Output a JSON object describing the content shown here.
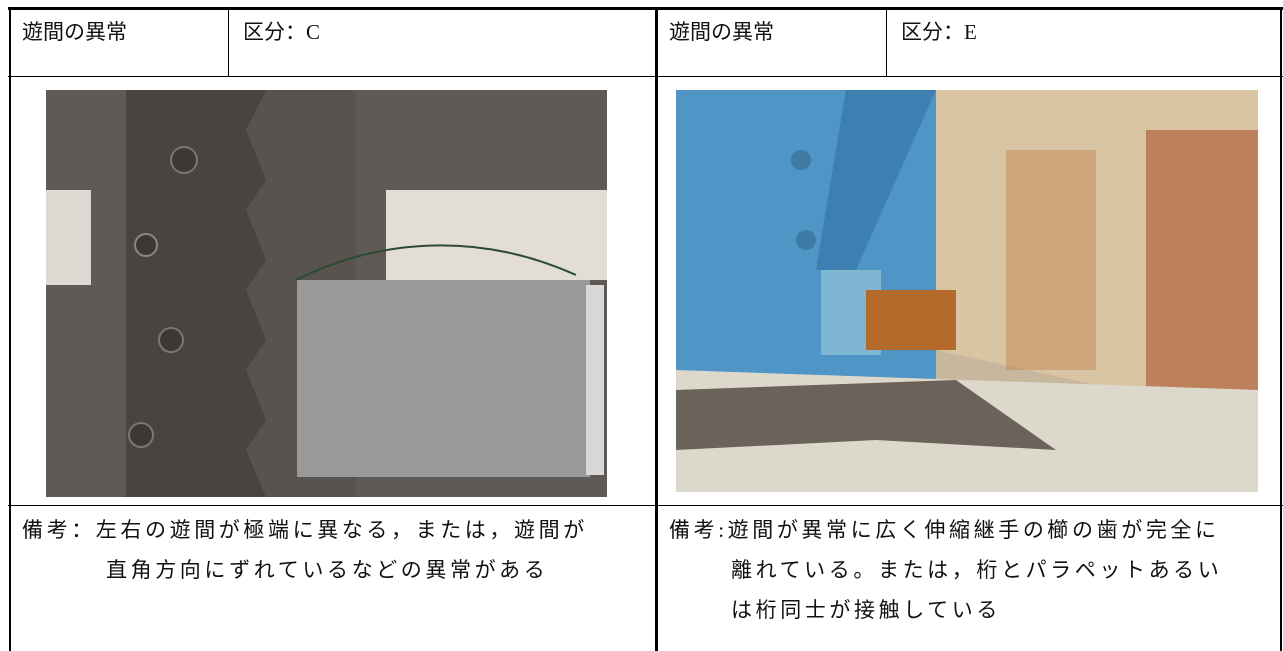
{
  "table": {
    "header": [
      [
        "遊間の異常",
        "区分：C"
      ],
      [
        "遊間の異常",
        "区分：E"
      ]
    ],
    "remarks": [
      [
        "備考：左右の遊間が極端に異なる，または，遊間が",
        "直角方向にずれているなどの異常がある"
      ],
      [
        "備考:遊間が異常に広く伸縮継手の櫛の歯が完全に",
        "離れている。または，桁とパラペットあるい",
        "は桁同士が接触している"
      ]
    ]
  }
}
